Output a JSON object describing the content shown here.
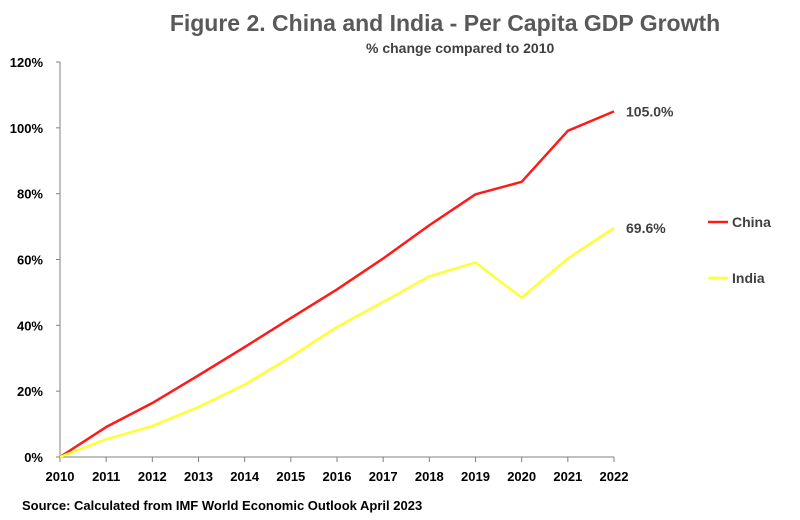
{
  "chart_data": {
    "type": "line",
    "title": "Figure 2. China and India - Per Capita GDP Growth",
    "subtitle": "% change compared to 2010",
    "source": "Source: Calculated from IMF World Economic Outlook April 2023",
    "x": [
      "2010",
      "2011",
      "2012",
      "2013",
      "2014",
      "2015",
      "2016",
      "2017",
      "2018",
      "2019",
      "2020",
      "2021",
      "2022"
    ],
    "ylim": [
      0,
      120
    ],
    "yticks": [
      "0%",
      "20%",
      "40%",
      "60%",
      "80%",
      "100%",
      "120%"
    ],
    "ytick_values": [
      0,
      20,
      40,
      60,
      80,
      100,
      120
    ],
    "grid": false,
    "legend_position": "right",
    "series": [
      {
        "name": "China",
        "color": "#ff1a1a",
        "values": [
          0,
          9.1,
          16.4,
          24.8,
          33.4,
          42.2,
          50.9,
          60.3,
          70.4,
          79.8,
          83.6,
          99.1,
          105.0
        ],
        "end_label": "105.0%"
      },
      {
        "name": "India",
        "color": "#ffff33",
        "values": [
          0,
          5.4,
          9.4,
          15.2,
          22.0,
          30.4,
          39.5,
          47.1,
          54.9,
          59.1,
          48.4,
          60.3,
          69.6
        ],
        "end_label": "69.6%"
      }
    ]
  }
}
